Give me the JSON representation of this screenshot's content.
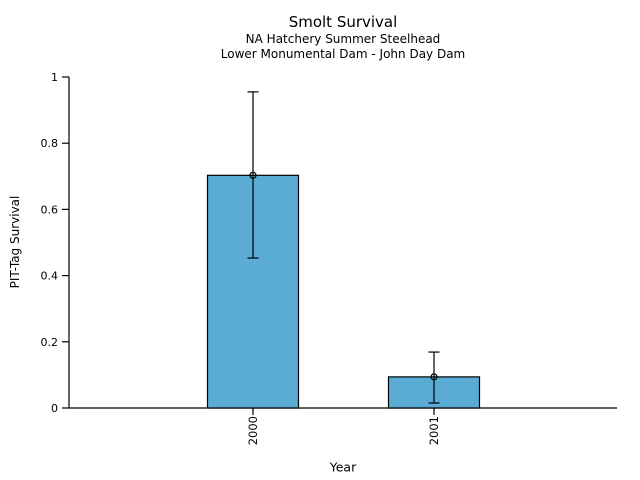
{
  "chart_data": {
    "type": "bar",
    "title": "Smolt Survival",
    "subtitle1": "NA Hatchery Summer Steelhead",
    "subtitle2": "Lower Monumental Dam - John Day Dam",
    "xlabel": "Year",
    "ylabel": "PIT-Tag Survival",
    "categories": [
      "2000",
      "2001"
    ],
    "values": [
      0.703,
      0.094
    ],
    "error_low": [
      0.453,
      0.015
    ],
    "error_high": [
      0.955,
      0.169
    ],
    "y_ticks": [
      0,
      0.2,
      0.4,
      0.6,
      0.8,
      1
    ],
    "y_tick_labels": [
      "0",
      "0.2",
      "0.4",
      "0.6",
      "0.8",
      "1"
    ],
    "ylim": [
      0,
      1
    ],
    "bar_color": "#5BACD4",
    "axis_color": "#000000",
    "marker": "open-circle",
    "legend": "none",
    "grid": "off"
  }
}
